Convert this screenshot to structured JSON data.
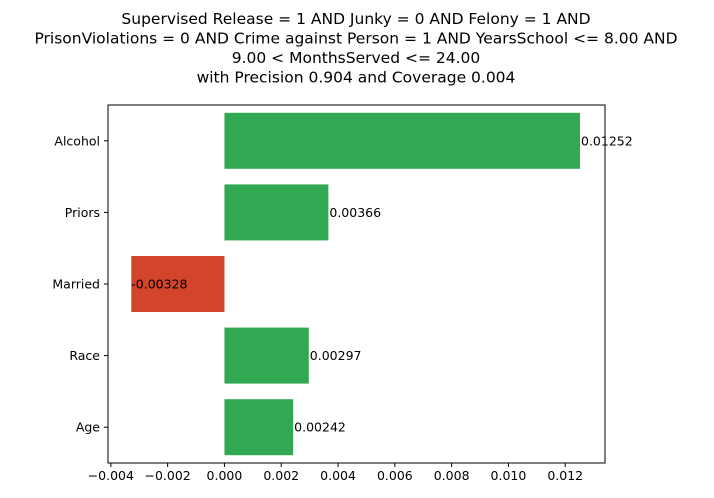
{
  "chart_data": {
    "type": "bar",
    "orientation": "horizontal",
    "title_lines": [
      "Supervised Release = 1 AND Junky = 0 AND Felony = 1 AND",
      "PrisonViolations = 0 AND Crime against Person = 1 AND YearsSchool <= 8.00 AND",
      "9.00 < MonthsServed <= 24.00",
      "with Precision 0.904 and Coverage 0.004"
    ],
    "categories": [
      "Alcohol",
      "Priors",
      "Married",
      "Race",
      "Age"
    ],
    "values": [
      0.01252,
      0.00366,
      -0.00328,
      0.00297,
      0.00242
    ],
    "value_labels": [
      "0.01252",
      "0.00366",
      "-0.00328",
      "0.00297",
      "0.00242"
    ],
    "xlim": [
      -0.0041,
      0.0134
    ],
    "x_ticks": [
      -0.004,
      -0.002,
      0.0,
      0.002,
      0.004,
      0.006,
      0.008,
      0.01,
      0.012
    ],
    "x_tick_labels": [
      "−0.004",
      "−0.002",
      "0.000",
      "0.002",
      "0.004",
      "0.006",
      "0.008",
      "0.010",
      "0.012"
    ],
    "xlabel": "",
    "ylabel": "",
    "grid": false,
    "colors": {
      "positive": "#33a852",
      "negative": "#d2452b"
    }
  }
}
